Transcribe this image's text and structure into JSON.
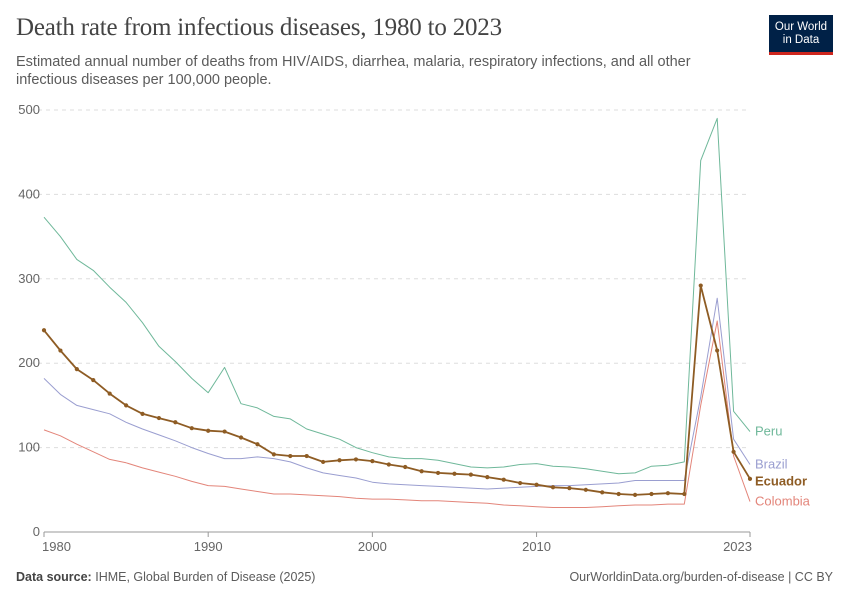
{
  "header": {
    "title": "Death rate from infectious diseases, 1980 to 2023",
    "subtitle": "Estimated annual number of deaths from HIV/AIDS, diarrhea, malaria, respiratory infections, and all other infectious diseases per 100,000 people."
  },
  "logo": {
    "line1": "Our World",
    "line2": "in Data",
    "bg_color": "#002147",
    "accent_color": "#ce261e"
  },
  "footer": {
    "source_label": "Data source:",
    "source_text": "IHME, Global Burden of Disease (2025)",
    "url": "OurWorldinData.org/burden-of-disease | CC BY"
  },
  "chart_data": {
    "type": "line",
    "xlim": [
      1980,
      2023
    ],
    "ylim": [
      0,
      500
    ],
    "x_ticks": [
      1980,
      1990,
      2000,
      2010,
      2023
    ],
    "y_ticks": [
      0,
      100,
      200,
      300,
      400,
      500
    ],
    "grid": "horizontal dashed",
    "legend": "inline labels at right end",
    "x": [
      1980,
      1981,
      1982,
      1983,
      1984,
      1985,
      1986,
      1987,
      1988,
      1989,
      1990,
      1991,
      1992,
      1993,
      1994,
      1995,
      1996,
      1997,
      1998,
      1999,
      2000,
      2001,
      2002,
      2003,
      2004,
      2005,
      2006,
      2007,
      2008,
      2009,
      2010,
      2011,
      2012,
      2013,
      2014,
      2015,
      2016,
      2017,
      2018,
      2019,
      2020,
      2021,
      2022,
      2023
    ],
    "series": [
      {
        "name": "Peru",
        "color": "#6fb89a",
        "highlighted": false,
        "values": [
          373,
          350,
          323,
          310,
          290,
          272,
          248,
          220,
          202,
          182,
          165,
          195,
          152,
          147,
          137,
          134,
          122,
          116,
          110,
          100,
          94,
          89,
          87,
          87,
          85,
          81,
          77,
          76,
          77,
          80,
          81,
          78,
          77,
          75,
          72,
          69,
          70,
          78,
          79,
          83,
          440,
          490,
          143,
          119
        ]
      },
      {
        "name": "Brazil",
        "color": "#9a9ed0",
        "highlighted": false,
        "values": [
          182,
          163,
          150,
          145,
          140,
          130,
          122,
          115,
          108,
          100,
          93,
          87,
          87,
          89,
          87,
          83,
          76,
          70,
          67,
          64,
          59,
          57,
          56,
          55,
          54,
          53,
          52,
          51,
          52,
          53,
          54,
          55,
          55,
          56,
          57,
          58,
          61,
          61,
          61,
          61,
          160,
          277,
          110,
          80
        ]
      },
      {
        "name": "Ecuador",
        "color": "#8e5c24",
        "highlighted": true,
        "values": [
          239,
          215,
          193,
          180,
          164,
          150,
          140,
          135,
          130,
          123,
          120,
          119,
          112,
          104,
          92,
          90,
          90,
          83,
          85,
          86,
          84,
          80,
          77,
          72,
          70,
          69,
          68,
          65,
          62,
          58,
          56,
          53,
          52,
          50,
          47,
          45,
          44,
          45,
          46,
          45,
          292,
          215,
          95,
          63
        ]
      },
      {
        "name": "Colombia",
        "color": "#e3857a",
        "highlighted": false,
        "values": [
          121,
          114,
          104,
          95,
          86,
          82,
          76,
          71,
          66,
          60,
          55,
          54,
          51,
          48,
          45,
          45,
          44,
          43,
          42,
          40,
          39,
          39,
          38,
          37,
          37,
          36,
          35,
          34,
          32,
          31,
          30,
          29,
          29,
          29,
          30,
          31,
          32,
          32,
          33,
          33,
          150,
          250,
          90,
          36
        ]
      }
    ]
  }
}
